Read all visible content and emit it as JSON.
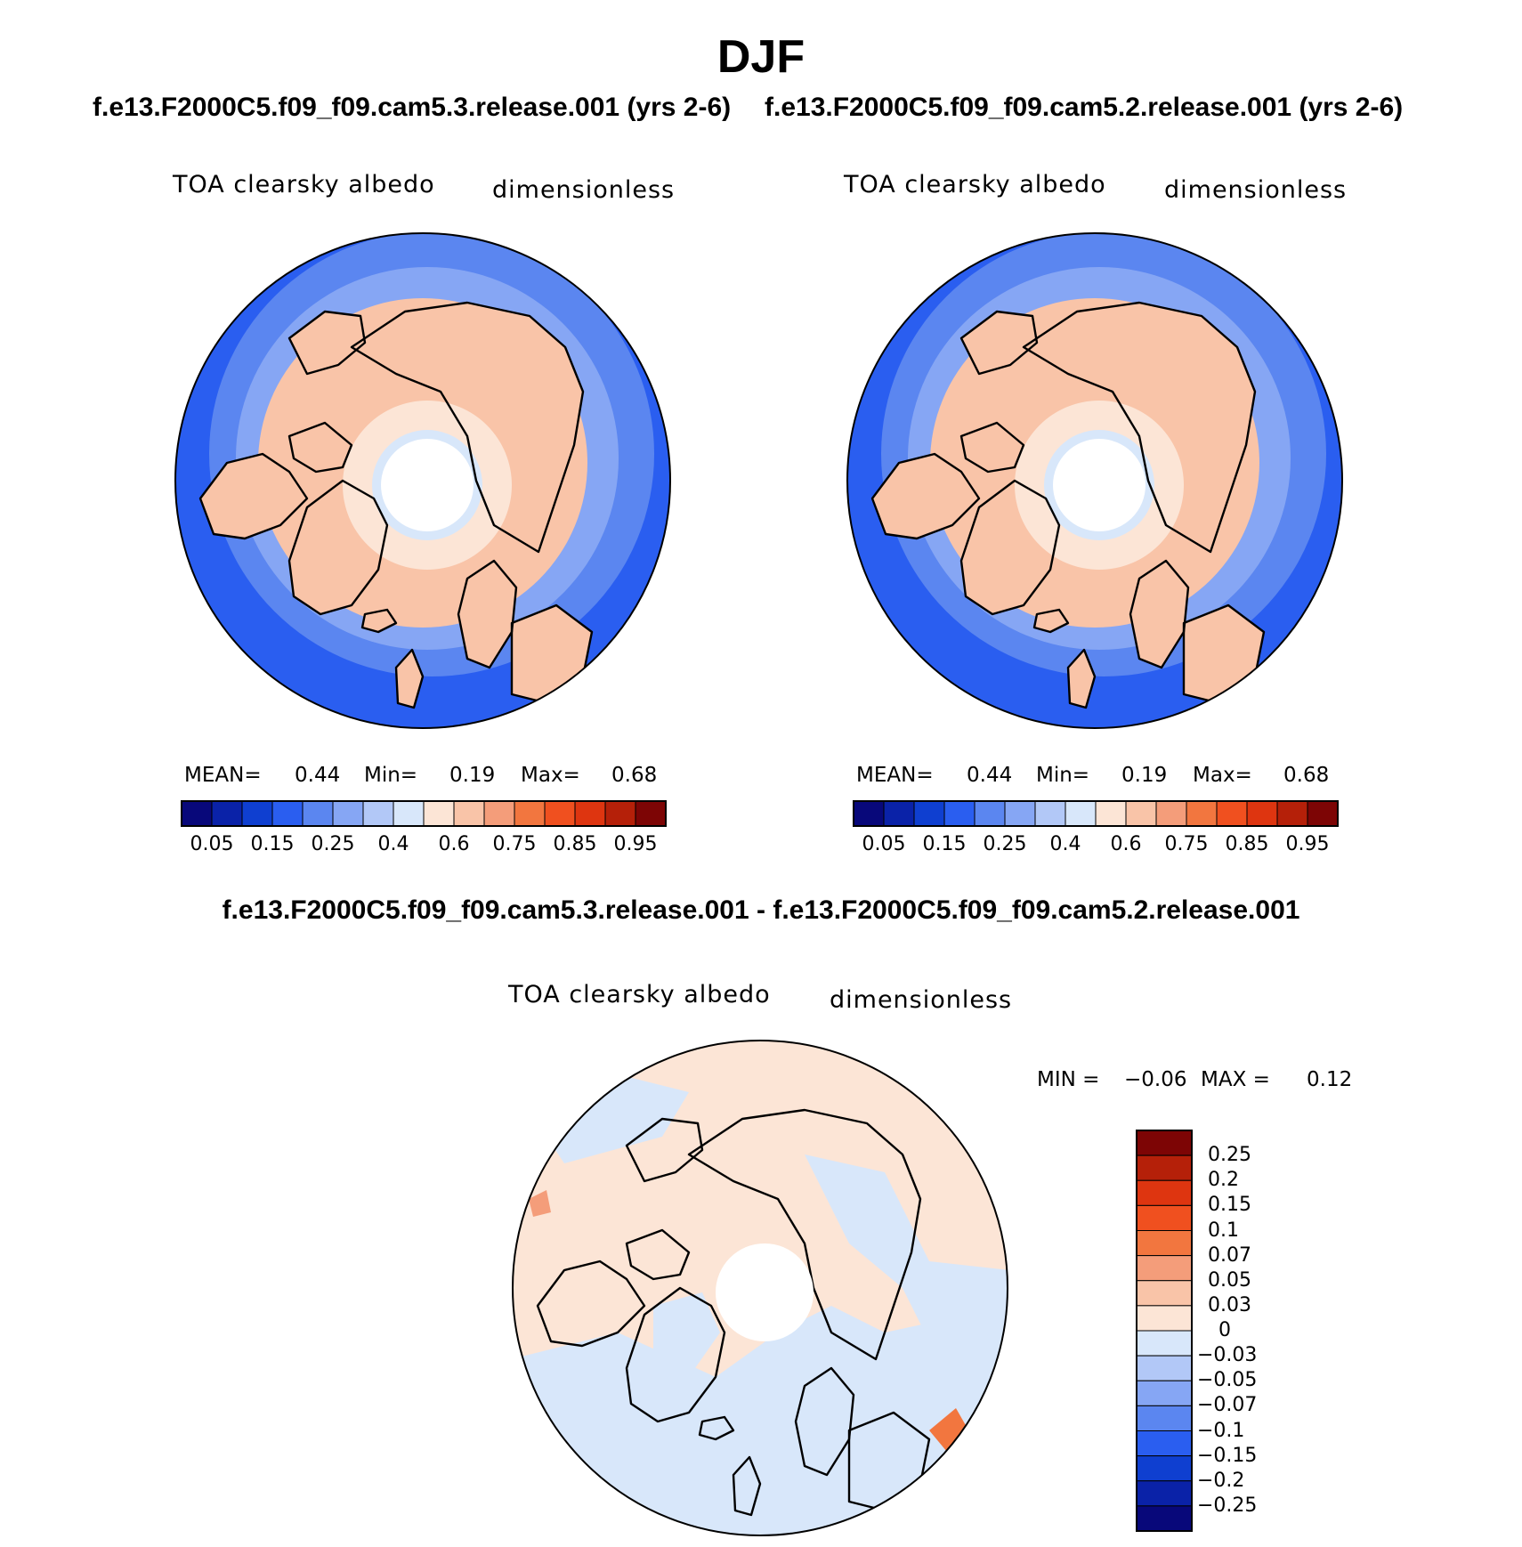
{
  "title": "DJF",
  "case_titles": {
    "test": "f.e13.F2000C5.f09_f09.cam5.3.release.001 (yrs 2-6)",
    "control": "f.e13.F2000C5.f09_f09.cam5.2.release.001 (yrs 2-6)"
  },
  "diff_title": "f.e13.F2000C5.f09_f09.cam5.3.release.001 - f.e13.F2000C5.f09_f09.cam5.2.release.001",
  "panels": [
    {
      "variable": "TOA clearsky albedo",
      "units": "dimensionless",
      "stats": {
        "mean_label": "MEAN=",
        "mean": "0.44",
        "min_label": "Min=",
        "min": "0.19",
        "max_label": "Max=",
        "max": "0.68"
      }
    },
    {
      "variable": "TOA clearsky albedo",
      "units": "dimensionless",
      "stats": {
        "mean_label": "MEAN=",
        "mean": "0.44",
        "min_label": "Min=",
        "min": "0.19",
        "max_label": "Max=",
        "max": "0.68"
      }
    }
  ],
  "diff_panel": {
    "variable": "TOA clearsky albedo",
    "units": "dimensionless",
    "stats": {
      "min_label": "MIN =",
      "min": "−0.06",
      "max_label": "MAX =",
      "max": "0.12"
    }
  },
  "colorbar_main": {
    "tick_labels": [
      "0.05",
      "0.15",
      "0.25",
      "0.4",
      "0.6",
      "0.75",
      "0.85",
      "0.95"
    ],
    "colors": [
      "#08087a",
      "#0a22a8",
      "#0f3fd0",
      "#2a5ef0",
      "#5b86f0",
      "#86a6f4",
      "#b2c8f7",
      "#d8e7fa",
      "#fce5d6",
      "#f9c4a8",
      "#f49d7a",
      "#f2763f",
      "#f0501f",
      "#de3510",
      "#b52009",
      "#7d0505"
    ]
  },
  "colorbar_diff": {
    "tick_labels": [
      "0.25",
      "0.2",
      "0.15",
      "0.1",
      "0.07",
      "0.05",
      "0.03",
      "0",
      "−0.03",
      "−0.05",
      "−0.07",
      "−0.1",
      "−0.15",
      "−0.2",
      "−0.25"
    ],
    "colors": [
      "#7d0505",
      "#b52009",
      "#de3510",
      "#f0501f",
      "#f2763f",
      "#f49d7a",
      "#f9c4a8",
      "#fce5d6",
      "#d8e7fa",
      "#b2c8f7",
      "#86a6f4",
      "#5b86f0",
      "#2a5ef0",
      "#0f3fd0",
      "#0a22a8",
      "#08087a"
    ]
  },
  "map_colors": {
    "ocean_dark": "#2a5ef0",
    "ocean_mid": "#5b86f0",
    "ocean_light": "#86a6f4",
    "ice": "#d8e7fa",
    "land_light": "#fce5d6",
    "land": "#f9c4a8",
    "diff_pos": "#fce5d6",
    "diff_neg": "#d8e7fa",
    "diff_strong": "#f2763f"
  }
}
